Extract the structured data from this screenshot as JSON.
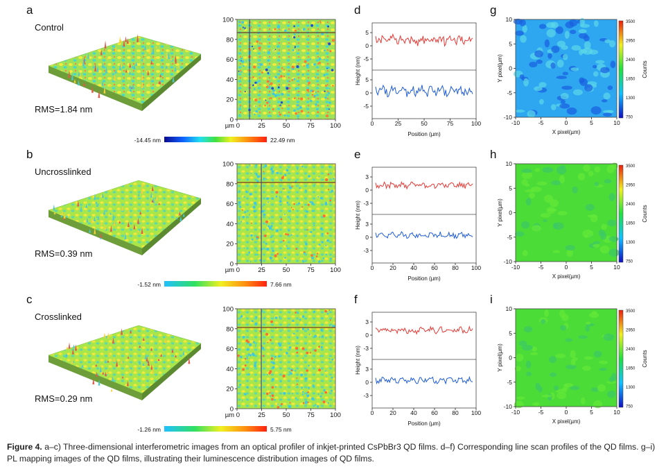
{
  "rows": [
    {
      "panels": {
        "surface": "a",
        "profile": "d",
        "pl": "g"
      },
      "sample": "Control",
      "rms": "RMS=1.84 nm",
      "colorbar": {
        "min": "-14.45 nm",
        "max": "22.49 nm"
      },
      "map_x_ticks": [
        "µm 0",
        "25",
        "50",
        "75",
        "100"
      ],
      "map_y_ticks": [
        "100",
        "80",
        "60",
        "40",
        "20",
        "0"
      ],
      "profile_y_ticks_top": [
        "5",
        "0",
        "-5"
      ],
      "profile_y_ticks_bottom": [
        "5",
        "0",
        "-5"
      ],
      "profile_x_ticks": [
        "0",
        "25",
        "50",
        "75",
        "100"
      ],
      "pl_x_ticks": [
        "-10",
        "-5",
        "0",
        "5",
        "10"
      ],
      "pl_y_ticks": [
        "10",
        "5",
        "0",
        "-5",
        "-10"
      ]
    },
    {
      "panels": {
        "surface": "b",
        "profile": "e",
        "pl": "h"
      },
      "sample": "Uncrosslinked",
      "rms": "RMS=0.39 nm",
      "colorbar": {
        "min": "-1.52 nm",
        "max": "7.66 nm"
      },
      "map_x_ticks": [
        "µm 0",
        "25",
        "50",
        "75",
        "100"
      ],
      "map_y_ticks": [
        "100",
        "80",
        "60",
        "40",
        "20",
        "0"
      ],
      "profile_y_ticks_top": [
        "3",
        "0",
        "-3"
      ],
      "profile_y_ticks_bottom": [
        "3",
        "0",
        "-3"
      ],
      "profile_x_ticks": [
        "0",
        "20",
        "40",
        "60",
        "80",
        "100"
      ],
      "pl_x_ticks": [
        "-10",
        "-5",
        "0",
        "5",
        "10"
      ],
      "pl_y_ticks": [
        "10",
        "5",
        "0",
        "-5",
        "-10"
      ]
    },
    {
      "panels": {
        "surface": "c",
        "profile": "f",
        "pl": "i"
      },
      "sample": "Crosslinked",
      "rms": "RMS=0.29 nm",
      "colorbar": {
        "min": "-1.26 nm",
        "max": "5.75 nm"
      },
      "map_x_ticks": [
        "µm 0",
        "25",
        "50",
        "75",
        "100"
      ],
      "map_y_ticks": [
        "100",
        "80",
        "60",
        "40",
        "20",
        "0"
      ],
      "profile_y_ticks_top": [
        "3",
        "0",
        "-3"
      ],
      "profile_y_ticks_bottom": [
        "3",
        "0",
        "-3"
      ],
      "profile_x_ticks": [
        "0",
        "20",
        "40",
        "60",
        "80",
        "100"
      ],
      "pl_x_ticks": [
        "-10",
        "-5",
        "0",
        "5",
        "10"
      ],
      "pl_y_ticks": [
        "10",
        "5",
        "0",
        "-5",
        "-10"
      ]
    }
  ],
  "profile_ylabel": "Height (nm)",
  "profile_xlabel": "Position (µm)",
  "pl_xlabel": "X pixel(µm)",
  "pl_ylabel": "Y pixel(µm)",
  "pl_colorbar_ticks": [
    "3500",
    "2950",
    "2400",
    "1850",
    "1300",
    "750"
  ],
  "pl_colorbar_label": "Counts",
  "colors": {
    "trace_top": "#e53935",
    "trace_bottom": "#1e5bd6"
  },
  "caption": {
    "label": "Figure 4.",
    "text": "a–c) Three-dimensional interferometric images from an optical profiler of inkjet-printed CsPbBr3 QD films. d–f) Corresponding line scan profiles of the QD films. g–i) PL mapping images of the QD films, illustrating their luminescence distribution images of QD films."
  }
}
